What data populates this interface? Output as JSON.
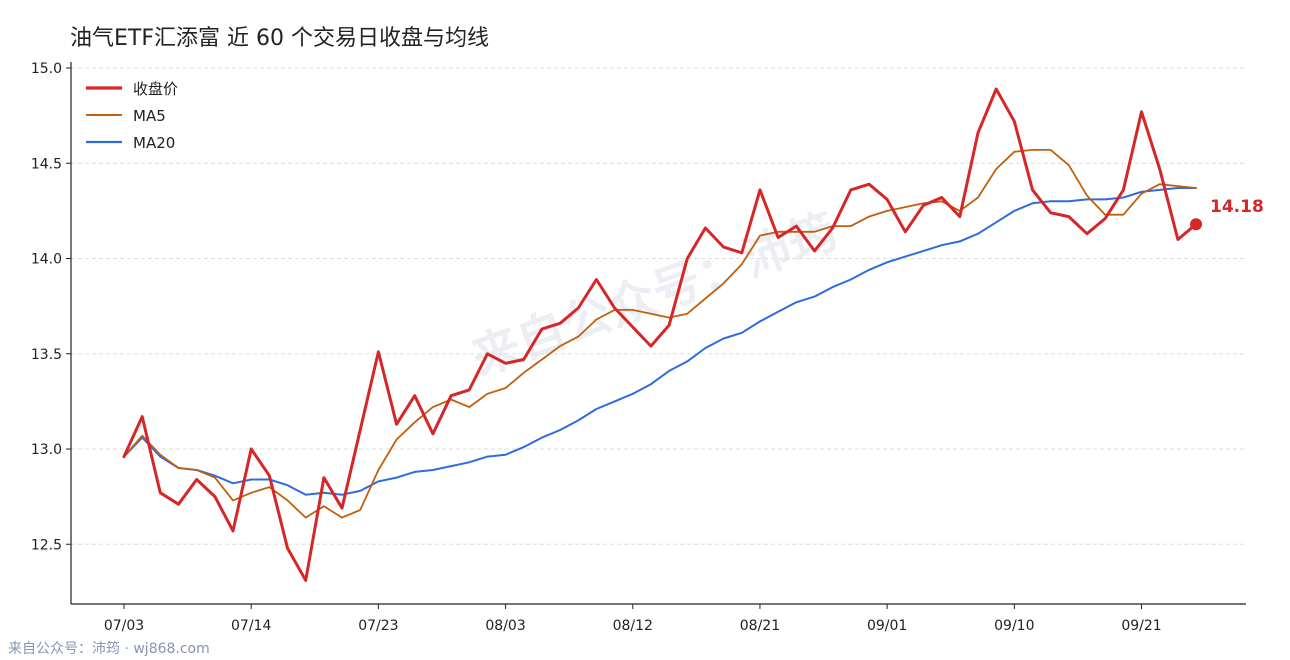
{
  "title": "油气ETF汇添富 近 60 个交易日收盘与均线",
  "footer": "来自公众号：沛筠 · wj868.com",
  "watermark": "来自公众号：沛筠",
  "colors": {
    "close": "#d62728",
    "ma5": "#c0600e",
    "ma20": "#2f6bdc"
  },
  "chart_data": {
    "type": "line",
    "ylim": [
      12.2,
      15.05
    ],
    "yticks": [
      "12.5",
      "13.0",
      "13.5",
      "14.0",
      "14.5",
      "15.0"
    ],
    "grid": true,
    "legend_position": "top-left",
    "xticks": [
      {
        "index": 0,
        "label": "07/03"
      },
      {
        "index": 7,
        "label": "07/14"
      },
      {
        "index": 14,
        "label": "07/23"
      },
      {
        "index": 21,
        "label": "08/03"
      },
      {
        "index": 28,
        "label": "08/12"
      },
      {
        "index": 35,
        "label": "08/21"
      },
      {
        "index": 42,
        "label": "09/01"
      },
      {
        "index": 49,
        "label": "09/10"
      },
      {
        "index": 56,
        "label": "09/21"
      }
    ],
    "series": [
      {
        "name": "收盘价",
        "key": "close",
        "values": [
          12.96,
          13.17,
          12.77,
          12.71,
          12.84,
          12.75,
          12.57,
          13.0,
          12.86,
          12.48,
          12.31,
          12.85,
          12.69,
          13.1,
          13.51,
          13.13,
          13.28,
          13.08,
          13.28,
          13.31,
          13.5,
          13.45,
          13.47,
          13.63,
          13.66,
          13.74,
          13.89,
          13.74,
          13.64,
          13.54,
          13.65,
          14.0,
          14.16,
          14.06,
          14.03,
          14.36,
          14.11,
          14.17,
          14.04,
          14.16,
          14.36,
          14.39,
          14.31,
          14.14,
          14.28,
          14.32,
          14.22,
          14.66,
          14.89,
          14.72,
          14.36,
          14.24,
          14.22,
          14.13,
          14.21,
          14.36,
          14.77,
          14.47,
          14.1,
          14.18
        ]
      },
      {
        "name": "MA5",
        "key": "ma5",
        "values": [
          12.96,
          13.07,
          12.97,
          12.9,
          12.89,
          12.85,
          12.73,
          12.77,
          12.8,
          12.73,
          12.64,
          12.7,
          12.64,
          12.68,
          12.89,
          13.05,
          13.14,
          13.22,
          13.26,
          13.22,
          13.29,
          13.32,
          13.4,
          13.47,
          13.54,
          13.59,
          13.68,
          13.73,
          13.73,
          13.71,
          13.69,
          13.71,
          13.79,
          13.87,
          13.97,
          14.12,
          14.14,
          14.14,
          14.14,
          14.17,
          14.17,
          14.22,
          14.25,
          14.27,
          14.29,
          14.3,
          14.25,
          14.32,
          14.47,
          14.56,
          14.57,
          14.57,
          14.49,
          14.33,
          14.23,
          14.23,
          14.34,
          14.39,
          14.38,
          14.37
        ]
      },
      {
        "name": "MA20",
        "key": "ma20",
        "values": [
          12.96,
          13.06,
          12.96,
          12.9,
          12.89,
          12.86,
          12.82,
          12.84,
          12.84,
          12.81,
          12.76,
          12.77,
          12.76,
          12.78,
          12.83,
          12.85,
          12.88,
          12.89,
          12.91,
          12.93,
          12.96,
          12.97,
          13.01,
          13.06,
          13.1,
          13.15,
          13.21,
          13.25,
          13.29,
          13.34,
          13.41,
          13.46,
          13.53,
          13.58,
          13.61,
          13.67,
          13.72,
          13.77,
          13.8,
          13.85,
          13.89,
          13.94,
          13.98,
          14.01,
          14.04,
          14.07,
          14.09,
          14.13,
          14.19,
          14.25,
          14.29,
          14.3,
          14.3,
          14.31,
          14.31,
          14.32,
          14.35,
          14.36,
          14.37,
          14.37
        ]
      }
    ],
    "last_value_label": "14.18"
  }
}
